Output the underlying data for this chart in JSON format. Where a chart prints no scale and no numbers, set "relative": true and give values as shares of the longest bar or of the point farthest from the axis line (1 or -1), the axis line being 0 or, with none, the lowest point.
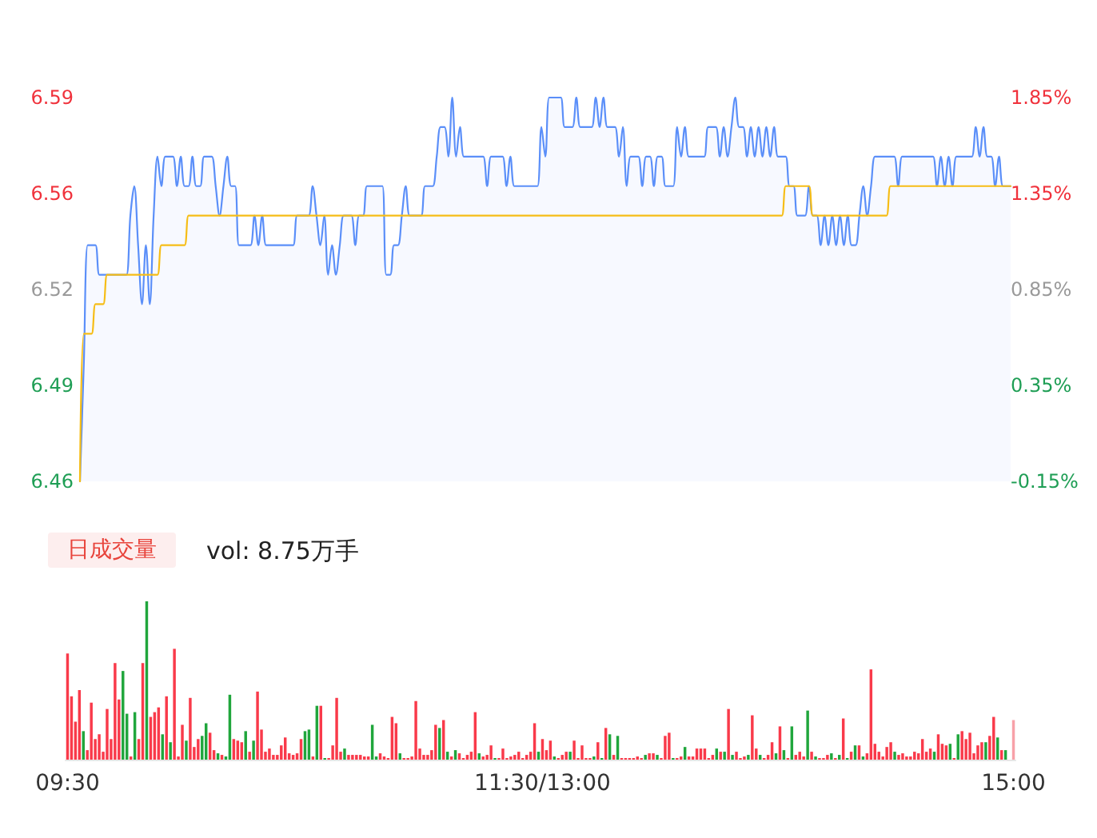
{
  "chart_data": [
    {
      "type": "area",
      "ylim": [
        6.46,
        6.59
      ],
      "yticks": [
        {
          "value": 6.46,
          "label": "6.46"
        },
        {
          "value": 6.4925,
          "label": "6.49"
        },
        {
          "value": 6.525,
          "label": "6.52"
        },
        {
          "value": 6.5575,
          "label": "6.56"
        },
        {
          "value": 6.59,
          "label": "6.59"
        }
      ],
      "y2lim": [
        -0.15,
        1.85
      ],
      "y2ticks": [
        {
          "value": -0.15,
          "label": "-0.15%"
        },
        {
          "value": 0.35,
          "label": "0.35%"
        },
        {
          "value": 0.85,
          "label": "0.85%"
        },
        {
          "value": 1.35,
          "label": "1.35%"
        },
        {
          "value": 1.85,
          "label": "1.85%"
        }
      ],
      "tick_labels": "y",
      "marker": "none",
      "line_style": "solid",
      "categories": [
        null,
        null,
        null,
        null,
        null,
        null,
        null,
        null,
        null,
        null,
        null,
        null,
        null,
        null,
        null,
        null,
        null,
        null,
        null,
        null,
        null,
        null,
        null,
        null,
        null,
        null,
        null,
        null,
        null,
        null,
        null,
        null,
        null,
        null,
        null,
        null,
        null,
        null,
        null,
        null,
        null,
        null,
        null,
        null,
        null,
        null,
        null,
        null,
        null,
        null,
        null,
        null,
        null,
        null,
        null,
        null,
        null,
        null,
        null,
        null,
        null,
        null,
        null,
        null,
        null,
        null,
        null,
        null,
        null,
        null,
        null,
        null,
        null,
        null,
        null,
        null,
        null,
        null,
        null,
        null,
        null,
        null,
        null,
        null,
        null,
        null,
        null,
        null,
        null,
        null,
        null,
        null,
        null,
        null,
        null,
        null,
        null,
        null,
        null,
        null,
        null,
        null,
        null,
        null,
        null,
        null,
        null,
        null,
        null,
        null,
        null,
        null,
        null,
        null,
        null,
        null,
        null,
        null,
        null,
        null,
        null,
        null,
        null,
        null,
        null,
        null,
        null,
        null,
        null,
        null,
        null,
        null,
        null,
        null,
        null,
        null,
        null,
        null,
        null,
        null,
        null,
        null,
        null,
        null,
        null,
        null,
        null,
        null,
        null,
        null,
        null,
        null,
        null,
        null,
        null,
        null,
        null,
        null,
        null,
        null,
        null,
        null,
        null,
        null,
        null,
        null,
        null,
        null,
        null,
        null,
        null,
        null,
        null,
        null,
        null,
        null,
        null,
        null,
        null,
        null,
        null,
        null,
        null,
        null,
        null,
        null,
        null,
        null,
        null,
        null,
        null,
        null,
        null,
        null,
        null,
        null,
        null,
        null,
        null,
        null,
        null,
        null,
        null,
        null,
        null,
        null,
        null,
        null,
        null,
        null,
        null,
        null,
        null,
        null,
        null,
        null,
        null,
        null,
        null,
        null,
        null,
        null,
        null,
        null,
        null,
        null,
        null,
        null,
        null,
        null,
        null,
        null,
        null,
        null,
        null,
        null,
        null,
        null,
        null,
        null,
        null
      ],
      "series": [
        {
          "color": "#5b8ff9",
          "values": [
            6.46,
            6.5,
            6.54,
            6.54,
            6.54,
            6.53,
            6.53,
            6.53,
            6.53,
            6.53,
            6.53,
            6.53,
            6.53,
            6.55,
            6.56,
            6.54,
            6.52,
            6.54,
            6.52,
            6.55,
            6.57,
            6.56,
            6.57,
            6.57,
            6.57,
            6.56,
            6.57,
            6.56,
            6.56,
            6.57,
            6.56,
            6.56,
            6.57,
            6.57,
            6.57,
            6.56,
            6.55,
            6.56,
            6.57,
            6.56,
            6.56,
            6.54,
            6.54,
            6.54,
            6.54,
            6.55,
            6.54,
            6.55,
            6.54,
            6.54,
            6.54,
            6.54,
            6.54,
            6.54,
            6.54,
            6.54,
            6.55,
            6.55,
            6.55,
            6.55,
            6.56,
            6.55,
            6.54,
            6.55,
            6.53,
            6.54,
            6.53,
            6.54,
            6.55,
            6.55,
            6.55,
            6.54,
            6.55,
            6.55,
            6.56,
            6.56,
            6.56,
            6.56,
            6.56,
            6.53,
            6.53,
            6.54,
            6.54,
            6.55,
            6.56,
            6.55,
            6.55,
            6.55,
            6.55,
            6.56,
            6.56,
            6.56,
            6.57,
            6.58,
            6.58,
            6.57,
            6.59,
            6.57,
            6.58,
            6.57,
            6.57,
            6.57,
            6.57,
            6.57,
            6.57,
            6.56,
            6.57,
            6.57,
            6.57,
            6.57,
            6.56,
            6.57,
            6.56,
            6.56,
            6.56,
            6.56,
            6.56,
            6.56,
            6.56,
            6.58,
            6.57,
            6.59,
            6.59,
            6.59,
            6.59,
            6.58,
            6.58,
            6.58,
            6.59,
            6.58,
            6.58,
            6.58,
            6.58,
            6.59,
            6.58,
            6.59,
            6.58,
            6.58,
            6.58,
            6.57,
            6.58,
            6.56,
            6.57,
            6.57,
            6.57,
            6.56,
            6.57,
            6.57,
            6.56,
            6.57,
            6.57,
            6.56,
            6.56,
            6.56,
            6.58,
            6.57,
            6.58,
            6.57,
            6.57,
            6.57,
            6.57,
            6.57,
            6.58,
            6.58,
            6.58,
            6.57,
            6.58,
            6.57,
            6.58,
            6.59,
            6.58,
            6.58,
            6.57,
            6.58,
            6.57,
            6.58,
            6.57,
            6.58,
            6.57,
            6.58,
            6.57,
            6.57,
            6.57,
            6.56,
            6.56,
            6.55,
            6.55,
            6.55,
            6.56,
            6.55,
            6.55,
            6.54,
            6.55,
            6.54,
            6.55,
            6.54,
            6.55,
            6.54,
            6.55,
            6.54,
            6.54,
            6.55,
            6.56,
            6.55,
            6.56,
            6.57,
            6.57,
            6.57,
            6.57,
            6.57,
            6.57,
            6.56,
            6.57,
            6.57,
            6.57,
            6.57,
            6.57,
            6.57,
            6.57,
            6.57,
            6.57,
            6.56,
            6.57,
            6.56,
            6.57,
            6.56,
            6.57,
            6.57,
            6.57,
            6.57,
            6.57,
            6.58,
            6.57,
            6.58,
            6.57,
            6.57,
            6.56,
            6.57,
            6.56,
            6.56,
            6.56
          ]
        },
        {
          "type": "line",
          "color": "#f6bd16",
          "values": [
            6.46,
            6.51,
            6.51,
            6.51,
            6.52,
            6.52,
            6.52,
            6.53,
            6.53,
            6.53,
            6.53,
            6.53,
            6.53,
            6.53,
            6.53,
            6.53,
            6.53,
            6.53,
            6.53,
            6.53,
            6.53,
            6.54,
            6.54,
            6.54,
            6.54,
            6.54,
            6.54,
            6.54,
            6.55,
            6.55,
            6.55,
            6.55,
            6.55,
            6.55,
            6.55,
            6.55,
            6.55,
            6.55,
            6.55,
            6.55,
            6.55,
            6.55,
            6.55,
            6.55,
            6.55,
            6.55,
            6.55,
            6.55,
            6.55,
            6.55,
            6.55,
            6.55,
            6.55,
            6.55,
            6.55,
            6.55,
            6.55,
            6.55,
            6.55,
            6.55,
            6.55,
            6.55,
            6.55,
            6.55,
            6.55,
            6.55,
            6.55,
            6.55,
            6.55,
            6.55,
            6.55,
            6.55,
            6.55,
            6.55,
            6.55,
            6.55,
            6.55,
            6.55,
            6.55,
            6.55,
            6.55,
            6.55,
            6.55,
            6.55,
            6.55,
            6.55,
            6.55,
            6.55,
            6.55,
            6.55,
            6.55,
            6.55,
            6.55,
            6.55,
            6.55,
            6.55,
            6.55,
            6.55,
            6.55,
            6.55,
            6.55,
            6.55,
            6.55,
            6.55,
            6.55,
            6.55,
            6.55,
            6.55,
            6.55,
            6.55,
            6.55,
            6.55,
            6.55,
            6.55,
            6.55,
            6.55,
            6.55,
            6.55,
            6.55,
            6.55,
            6.55,
            6.55,
            6.55,
            6.55,
            6.55,
            6.55,
            6.55,
            6.55,
            6.55,
            6.55,
            6.55,
            6.55,
            6.55,
            6.55,
            6.55,
            6.55,
            6.55,
            6.55,
            6.55,
            6.55,
            6.55,
            6.55,
            6.55,
            6.55,
            6.55,
            6.55,
            6.55,
            6.55,
            6.55,
            6.55,
            6.55,
            6.55,
            6.55,
            6.55,
            6.55,
            6.55,
            6.55,
            6.55,
            6.55,
            6.55,
            6.55,
            6.55,
            6.55,
            6.55,
            6.55,
            6.55,
            6.55,
            6.55,
            6.55,
            6.55,
            6.55,
            6.55,
            6.55,
            6.55,
            6.55,
            6.55,
            6.55,
            6.55,
            6.55,
            6.55,
            6.55,
            6.55,
            6.56,
            6.56,
            6.56,
            6.56,
            6.56,
            6.56,
            6.56,
            6.55,
            6.55,
            6.55,
            6.55,
            6.55,
            6.55,
            6.55,
            6.55,
            6.55,
            6.55,
            6.55,
            6.55,
            6.55,
            6.55,
            6.55,
            6.55,
            6.55,
            6.55,
            6.55,
            6.55,
            6.56,
            6.56,
            6.56,
            6.56,
            6.56,
            6.56,
            6.56,
            6.56,
            6.56,
            6.56,
            6.56,
            6.56,
            6.56,
            6.56,
            6.56,
            6.56,
            6.56,
            6.56,
            6.56,
            6.56,
            6.56,
            6.56,
            6.56,
            6.56,
            6.56,
            6.56,
            6.56,
            6.56,
            6.56,
            6.56,
            6.56,
            6.56
          ]
        }
      ]
    },
    {
      "type": "bar",
      "title": "日成交量",
      "annotations": [
        "vol: 8.75万手"
      ],
      "relative": true,
      "tick_labels": "x",
      "categories": [
        "09:30",
        null,
        null,
        null,
        null,
        null,
        null,
        null,
        null,
        null,
        null,
        null,
        null,
        null,
        null,
        null,
        null,
        null,
        null,
        null,
        null,
        null,
        null,
        null,
        null,
        null,
        null,
        null,
        null,
        null,
        null,
        null,
        null,
        null,
        null,
        null,
        null,
        null,
        null,
        null,
        null,
        null,
        null,
        null,
        null,
        null,
        null,
        null,
        null,
        null,
        null,
        null,
        null,
        null,
        null,
        null,
        null,
        null,
        null,
        null,
        null,
        null,
        null,
        null,
        null,
        null,
        null,
        null,
        null,
        null,
        null,
        null,
        null,
        null,
        null,
        null,
        null,
        null,
        null,
        null,
        null,
        null,
        null,
        null,
        null,
        null,
        null,
        null,
        null,
        null,
        null,
        null,
        null,
        null,
        null,
        null,
        null,
        null,
        null,
        null,
        null,
        null,
        null,
        null,
        null,
        null,
        null,
        null,
        null,
        null,
        null,
        null,
        null,
        null,
        null,
        null,
        null,
        null,
        null,
        null,
        "11:30/13:00",
        null,
        null,
        null,
        null,
        null,
        null,
        null,
        null,
        null,
        null,
        null,
        null,
        null,
        null,
        null,
        null,
        null,
        null,
        null,
        null,
        null,
        null,
        null,
        null,
        null,
        null,
        null,
        null,
        null,
        null,
        null,
        null,
        null,
        null,
        null,
        null,
        null,
        null,
        null,
        null,
        null,
        null,
        null,
        null,
        null,
        null,
        null,
        null,
        null,
        null,
        null,
        null,
        null,
        null,
        null,
        null,
        null,
        null,
        null,
        null,
        null,
        null,
        null,
        null,
        null,
        null,
        null,
        null,
        null,
        null,
        null,
        null,
        null,
        null,
        null,
        null,
        null,
        null,
        null,
        null,
        null,
        null,
        null,
        null,
        null,
        null,
        null,
        null,
        null,
        null,
        null,
        null,
        null,
        null,
        null,
        null,
        null,
        null,
        null,
        null,
        null,
        null,
        null,
        null,
        null,
        null,
        null,
        null,
        null,
        null,
        null,
        null,
        null,
        null,
        null,
        null,
        null,
        null,
        "15:00"
      ],
      "values": [
        0.67,
        0.4,
        0.24,
        0.44,
        0.18,
        0.06,
        0.36,
        0.13,
        0.16,
        0.05,
        0.32,
        0.13,
        0.61,
        0.38,
        0.56,
        0.29,
        0.02,
        0.3,
        0.13,
        0.61,
        1.0,
        0.27,
        0.3,
        0.33,
        0.16,
        0.4,
        0.11,
        0.7,
        0.02,
        0.22,
        0.12,
        0.39,
        0.08,
        0.13,
        0.15,
        0.23,
        0.17,
        0.06,
        0.04,
        0.03,
        0.02,
        0.41,
        0.13,
        0.12,
        0.11,
        0.18,
        0.05,
        0.12,
        0.43,
        0.19,
        0.05,
        0.07,
        0.03,
        0.03,
        0.09,
        0.14,
        0.04,
        0.03,
        0.04,
        0.13,
        0.18,
        0.19,
        0.02,
        0.34,
        0.34,
        0.01,
        0.01,
        0.09,
        0.39,
        0.05,
        0.07,
        0.03,
        0.03,
        0.03,
        0.03,
        0.02,
        0.02,
        0.22,
        0.02,
        0.04,
        0.02,
        0.01,
        0.27,
        0.23,
        0.04,
        0.01,
        0.01,
        0.02,
        0.37,
        0.07,
        0.03,
        0.03,
        0.06,
        0.22,
        0.2,
        0.25,
        0.05,
        0.02,
        0.06,
        0.04,
        0.01,
        0.03,
        0.05,
        0.3,
        0.04,
        0.02,
        0.03,
        0.09,
        0.01,
        0.01,
        0.07,
        0.01,
        0.02,
        0.03,
        0.05,
        0.01,
        0.03,
        0.05,
        0.23,
        0.05,
        0.13,
        0.06,
        0.12,
        0.02,
        0.01,
        0.03,
        0.05,
        0.05,
        0.12,
        0.01,
        0.09,
        0.01,
        0.01,
        0.02,
        0.11,
        0.01,
        0.2,
        0.16,
        0.03,
        0.15,
        0.01,
        0.01,
        0.01,
        0.01,
        0.02,
        0.01,
        0.03,
        0.04,
        0.04,
        0.03,
        0.01,
        0.15,
        0.17,
        0.01,
        0.01,
        0.02,
        0.08,
        0.02,
        0.02,
        0.07,
        0.07,
        0.07,
        0.01,
        0.03,
        0.07,
        0.05,
        0.05,
        0.32,
        0.03,
        0.05,
        0.01,
        0.02,
        0.03,
        0.28,
        0.07,
        0.03,
        0.01,
        0.03,
        0.11,
        0.04,
        0.21,
        0.06,
        0.01,
        0.21,
        0.03,
        0.05,
        0.02,
        0.31,
        0.05,
        0.02,
        0.01,
        0.01,
        0.03,
        0.04,
        0.01,
        0.03,
        0.26,
        0.01,
        0.05,
        0.09,
        0.09,
        0.02,
        0.04,
        0.57,
        0.1,
        0.05,
        0.02,
        0.08,
        0.11,
        0.05,
        0.03,
        0.04,
        0.02,
        0.02,
        0.05,
        0.04,
        0.13,
        0.05,
        0.07,
        0.05,
        0.16,
        0.1,
        0.09,
        0.1,
        0.01,
        0.16,
        0.18,
        0.13,
        0.17,
        0.04,
        0.09,
        0.11,
        0.11,
        0.15,
        0.27,
        0.14,
        0.06,
        0.06,
        null,
        0.25
      ],
      "colors": [
        "#f93a4a",
        "#f93a4a",
        "#f93a4a",
        "#f93a4a",
        "#20a63c",
        "#f93a4a",
        "#f93a4a",
        "#f93a4a",
        "#f93a4a",
        "#f93a4a",
        "#f93a4a",
        "#f93a4a",
        "#f93a4a",
        "#f93a4a",
        "#20a63c",
        "#20a63c",
        "#f93a4a",
        "#20a63c",
        "#f93a4a",
        "#f93a4a",
        "#20a63c",
        "#f93a4a",
        "#f93a4a",
        "#f93a4a",
        "#20a63c",
        "#f93a4a",
        "#20a63c",
        "#f93a4a",
        "#f93a4a",
        "#f93a4a",
        "#20a63c",
        "#f93a4a",
        "#f93a4a",
        "#f93a4a",
        "#20a63c",
        "#20a63c",
        "#f93a4a",
        "#f93a4a",
        "#20a63c",
        "#f93a4a",
        "#20a63c",
        "#20a63c",
        "#f93a4a",
        "#f93a4a",
        "#f93a4a",
        "#20a63c",
        "#f93a4a",
        "#20a63c",
        "#f93a4a",
        "#f93a4a",
        "#f93a4a",
        "#f93a4a",
        "#f93a4a",
        "#f93a4a",
        "#f93a4a",
        "#f93a4a",
        "#f93a4a",
        "#f93a4a",
        "#f93a4a",
        "#f93a4a",
        "#20a63c",
        "#20a63c",
        "#f93a4a",
        "#20a63c",
        "#f93a4a",
        "#20a63c",
        "#f93a4a",
        "#f93a4a",
        "#f93a4a",
        "#f93a4a",
        "#20a63c",
        "#f93a4a",
        "#f93a4a",
        "#f93a4a",
        "#f93a4a",
        "#f93a4a",
        "#f93a4a",
        "#20a63c",
        "#20a63c",
        "#f93a4a",
        "#f93a4a",
        "#f93a4a",
        "#f93a4a",
        "#f93a4a",
        "#20a63c",
        "#f93a4a",
        "#f93a4a",
        "#f93a4a",
        "#f93a4a",
        "#f93a4a",
        "#f93a4a",
        "#f93a4a",
        "#f93a4a",
        "#f93a4a",
        "#20a63c",
        "#f93a4a",
        "#20a63c",
        "#f93a4a",
        "#20a63c",
        "#f93a4a",
        "#f93a4a",
        "#f93a4a",
        "#f93a4a",
        "#f93a4a",
        "#20a63c",
        "#f93a4a",
        "#f93a4a",
        "#f93a4a",
        "#20a63c",
        "#f93a4a",
        "#f93a4a",
        "#f93a4a",
        "#f93a4a",
        "#f93a4a",
        "#f93a4a",
        "#f93a4a",
        "#f93a4a",
        "#f93a4a",
        "#f93a4a",
        "#20a63c",
        "#f93a4a",
        "#f93a4a",
        "#f93a4a",
        "#20a63c",
        "#f93a4a",
        "#f93a4a",
        "#f93a4a",
        "#20a63c",
        "#f93a4a",
        "#f93a4a",
        "#f93a4a",
        "#f93a4a",
        "#f93a4a",
        "#20a63c",
        "#f93a4a",
        "#20a63c",
        "#f93a4a",
        "#20a63c",
        "#f93a4a",
        "#20a63c",
        "#f93a4a",
        "#f93a4a",
        "#f93a4a",
        "#f93a4a",
        "#f93a4a",
        "#f93a4a",
        "#20a63c",
        "#f93a4a",
        "#f93a4a",
        "#20a63c",
        "#f93a4a",
        "#f93a4a",
        "#f93a4a",
        "#20a63c",
        "#f93a4a",
        "#f93a4a",
        "#20a63c",
        "#f93a4a",
        "#f93a4a",
        "#f93a4a",
        "#f93a4a",
        "#f93a4a",
        "#f93a4a",
        "#f93a4a",
        "#20a63c",
        "#f93a4a",
        "#20a63c",
        "#f93a4a",
        "#20a63c",
        "#f93a4a",
        "#f93a4a",
        "#f93a4a",
        "#20a63c",
        "#f93a4a",
        "#f93a4a",
        "#20a63c",
        "#f93a4a",
        "#f93a4a",
        "#f93a4a",
        "#20a63c",
        "#f93a4a",
        "#20a63c",
        "#f93a4a",
        "#20a63c",
        "#f93a4a",
        "#f93a4a",
        "#f93a4a",
        "#20a63c",
        "#f93a4a",
        "#20a63c",
        "#f93a4a",
        "#f93a4a",
        "#f93a4a",
        "#20a63c",
        "#f93a4a",
        "#20a63c",
        "#f93a4a",
        "#20a63c",
        "#f93a4a",
        "#20a63c",
        "#f93a4a",
        "#20a63c",
        "#f93a4a",
        "#f93a4a",
        "#f93a4a",
        "#f93a4a",
        "#f93a4a",
        "#f93a4a",
        "#f93a4a",
        "#20a63c",
        "#f93a4a",
        "#f93a4a",
        "#f93a4a",
        "#f93a4a",
        "#f93a4a",
        "#f93a4a",
        "#f93a4a",
        "#f93a4a",
        "#f93a4a",
        "#20a63c",
        "#f93a4a",
        "#f93a4a",
        "#f93a4a",
        "#20a63c",
        "#f93a4a",
        "#20a63c",
        "#f93a4a",
        "#f93a4a",
        "#f93a4a",
        "#f93a4a",
        "#f93a4a",
        "#f93a4a",
        "#20a63c",
        "#f93a4a",
        "#f93a4a",
        "#20a63c",
        "#f93a4a",
        "#20a63c",
        "#f93a4a",
        "#f7a1a8"
      ]
    }
  ]
}
